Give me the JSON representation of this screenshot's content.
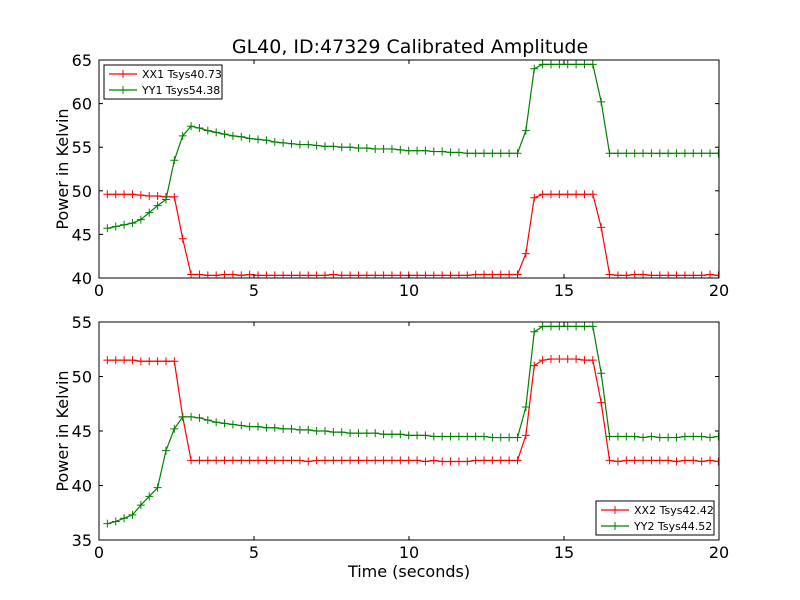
{
  "title": "GL40, ID:47329 Calibrated Amplitude",
  "chart_data": [
    {
      "type": "line",
      "ylabel": "Power in Kelvin",
      "xlabel": "",
      "xlim": [
        0,
        20
      ],
      "ylim": [
        40,
        65
      ],
      "xticks": [
        0,
        5,
        10,
        15,
        20
      ],
      "yticks": [
        40,
        45,
        50,
        55,
        60,
        65
      ],
      "legend_position": "top-left",
      "x": [
        0.27,
        0.54,
        0.81,
        1.08,
        1.35,
        1.62,
        1.89,
        2.16,
        2.43,
        2.7,
        2.97,
        3.24,
        3.51,
        3.78,
        4.05,
        4.32,
        4.59,
        4.86,
        5.13,
        5.4,
        5.67,
        5.94,
        6.21,
        6.48,
        6.75,
        7.02,
        7.29,
        7.56,
        7.83,
        8.1,
        8.37,
        8.64,
        8.91,
        9.18,
        9.45,
        9.72,
        9.99,
        10.26,
        10.53,
        10.8,
        11.07,
        11.34,
        11.61,
        11.88,
        12.15,
        12.42,
        12.69,
        12.96,
        13.23,
        13.5,
        13.77,
        14.04,
        14.31,
        14.58,
        14.85,
        15.12,
        15.39,
        15.66,
        15.93,
        16.2,
        16.47,
        16.74,
        17.01,
        17.28,
        17.55,
        17.82,
        18.09,
        18.36,
        18.63,
        18.9,
        19.17,
        19.44,
        19.71,
        19.98
      ],
      "series": [
        {
          "name": "XX1 Tsys40.73",
          "color": "#ff0000",
          "values": [
            49.6,
            49.6,
            49.6,
            49.6,
            49.5,
            49.4,
            49.4,
            49.3,
            49.3,
            44.5,
            40.4,
            40.4,
            40.3,
            40.3,
            40.4,
            40.4,
            40.3,
            40.4,
            40.3,
            40.3,
            40.3,
            40.3,
            40.3,
            40.3,
            40.3,
            40.3,
            40.3,
            40.4,
            40.3,
            40.3,
            40.3,
            40.3,
            40.3,
            40.3,
            40.3,
            40.3,
            40.3,
            40.3,
            40.3,
            40.3,
            40.3,
            40.3,
            40.3,
            40.3,
            40.4,
            40.4,
            40.4,
            40.4,
            40.4,
            40.4,
            42.8,
            49.2,
            49.6,
            49.6,
            49.6,
            49.6,
            49.6,
            49.6,
            49.6,
            45.8,
            40.4,
            40.3,
            40.3,
            40.4,
            40.4,
            40.3,
            40.3,
            40.3,
            40.3,
            40.3,
            40.3,
            40.3,
            40.4,
            40.3
          ]
        },
        {
          "name": "YY1 Tsys54.38",
          "color": "#008000",
          "values": [
            45.7,
            45.9,
            46.1,
            46.3,
            46.7,
            47.5,
            48.3,
            49.0,
            53.5,
            56.3,
            57.4,
            57.2,
            56.9,
            56.7,
            56.5,
            56.3,
            56.2,
            56.0,
            55.9,
            55.8,
            55.6,
            55.5,
            55.4,
            55.3,
            55.3,
            55.2,
            55.1,
            55.1,
            55.0,
            55.0,
            54.9,
            54.9,
            54.8,
            54.8,
            54.8,
            54.7,
            54.6,
            54.6,
            54.6,
            54.5,
            54.5,
            54.4,
            54.4,
            54.3,
            54.3,
            54.3,
            54.3,
            54.3,
            54.3,
            54.3,
            56.9,
            64.0,
            64.5,
            64.5,
            64.5,
            64.5,
            64.5,
            64.5,
            64.5,
            60.2,
            54.3,
            54.3,
            54.3,
            54.3,
            54.3,
            54.3,
            54.3,
            54.3,
            54.3,
            54.3,
            54.3,
            54.3,
            54.3,
            54.3
          ]
        }
      ]
    },
    {
      "type": "line",
      "ylabel": "Power in Kelvin",
      "xlabel": "Time (seconds)",
      "xlim": [
        0,
        20
      ],
      "ylim": [
        35,
        55
      ],
      "xticks": [
        0,
        5,
        10,
        15,
        20
      ],
      "yticks": [
        35,
        40,
        45,
        50,
        55
      ],
      "legend_position": "bottom-right",
      "x": [
        0.27,
        0.54,
        0.81,
        1.08,
        1.35,
        1.62,
        1.89,
        2.16,
        2.43,
        2.7,
        2.97,
        3.24,
        3.51,
        3.78,
        4.05,
        4.32,
        4.59,
        4.86,
        5.13,
        5.4,
        5.67,
        5.94,
        6.21,
        6.48,
        6.75,
        7.02,
        7.29,
        7.56,
        7.83,
        8.1,
        8.37,
        8.64,
        8.91,
        9.18,
        9.45,
        9.72,
        9.99,
        10.26,
        10.53,
        10.8,
        11.07,
        11.34,
        11.61,
        11.88,
        12.15,
        12.42,
        12.69,
        12.96,
        13.23,
        13.5,
        13.77,
        14.04,
        14.31,
        14.58,
        14.85,
        15.12,
        15.39,
        15.66,
        15.93,
        16.2,
        16.47,
        16.74,
        17.01,
        17.28,
        17.55,
        17.82,
        18.09,
        18.36,
        18.63,
        18.9,
        19.17,
        19.44,
        19.71,
        19.98
      ],
      "series": [
        {
          "name": "XX2 Tsys42.42",
          "color": "#ff0000",
          "values": [
            51.5,
            51.5,
            51.5,
            51.5,
            51.4,
            51.4,
            51.4,
            51.4,
            51.4,
            46.3,
            42.3,
            42.3,
            42.3,
            42.3,
            42.3,
            42.3,
            42.3,
            42.3,
            42.3,
            42.3,
            42.3,
            42.3,
            42.3,
            42.3,
            42.2,
            42.3,
            42.3,
            42.3,
            42.3,
            42.3,
            42.3,
            42.3,
            42.3,
            42.3,
            42.3,
            42.3,
            42.3,
            42.3,
            42.2,
            42.3,
            42.2,
            42.2,
            42.2,
            42.2,
            42.3,
            42.3,
            42.3,
            42.3,
            42.3,
            42.3,
            44.6,
            51.0,
            51.5,
            51.6,
            51.6,
            51.6,
            51.6,
            51.5,
            51.5,
            47.6,
            42.3,
            42.2,
            42.3,
            42.3,
            42.3,
            42.3,
            42.3,
            42.3,
            42.2,
            42.3,
            42.3,
            42.2,
            42.3,
            42.2
          ]
        },
        {
          "name": "YY2 Tsys44.52",
          "color": "#008000",
          "values": [
            36.5,
            36.7,
            37.0,
            37.3,
            38.2,
            39.0,
            39.8,
            43.2,
            45.2,
            46.3,
            46.3,
            46.2,
            46.0,
            45.8,
            45.7,
            45.6,
            45.5,
            45.4,
            45.4,
            45.3,
            45.3,
            45.2,
            45.2,
            45.1,
            45.1,
            45.0,
            45.0,
            44.9,
            44.9,
            44.8,
            44.8,
            44.8,
            44.8,
            44.7,
            44.7,
            44.7,
            44.6,
            44.6,
            44.6,
            44.5,
            44.5,
            44.5,
            44.5,
            44.5,
            44.5,
            44.5,
            44.4,
            44.4,
            44.4,
            44.4,
            47.2,
            54.1,
            54.6,
            54.6,
            54.6,
            54.6,
            54.6,
            54.6,
            54.6,
            50.3,
            44.5,
            44.5,
            44.5,
            44.5,
            44.4,
            44.5,
            44.4,
            44.4,
            44.4,
            44.5,
            44.5,
            44.5,
            44.4,
            44.5
          ]
        }
      ]
    }
  ]
}
